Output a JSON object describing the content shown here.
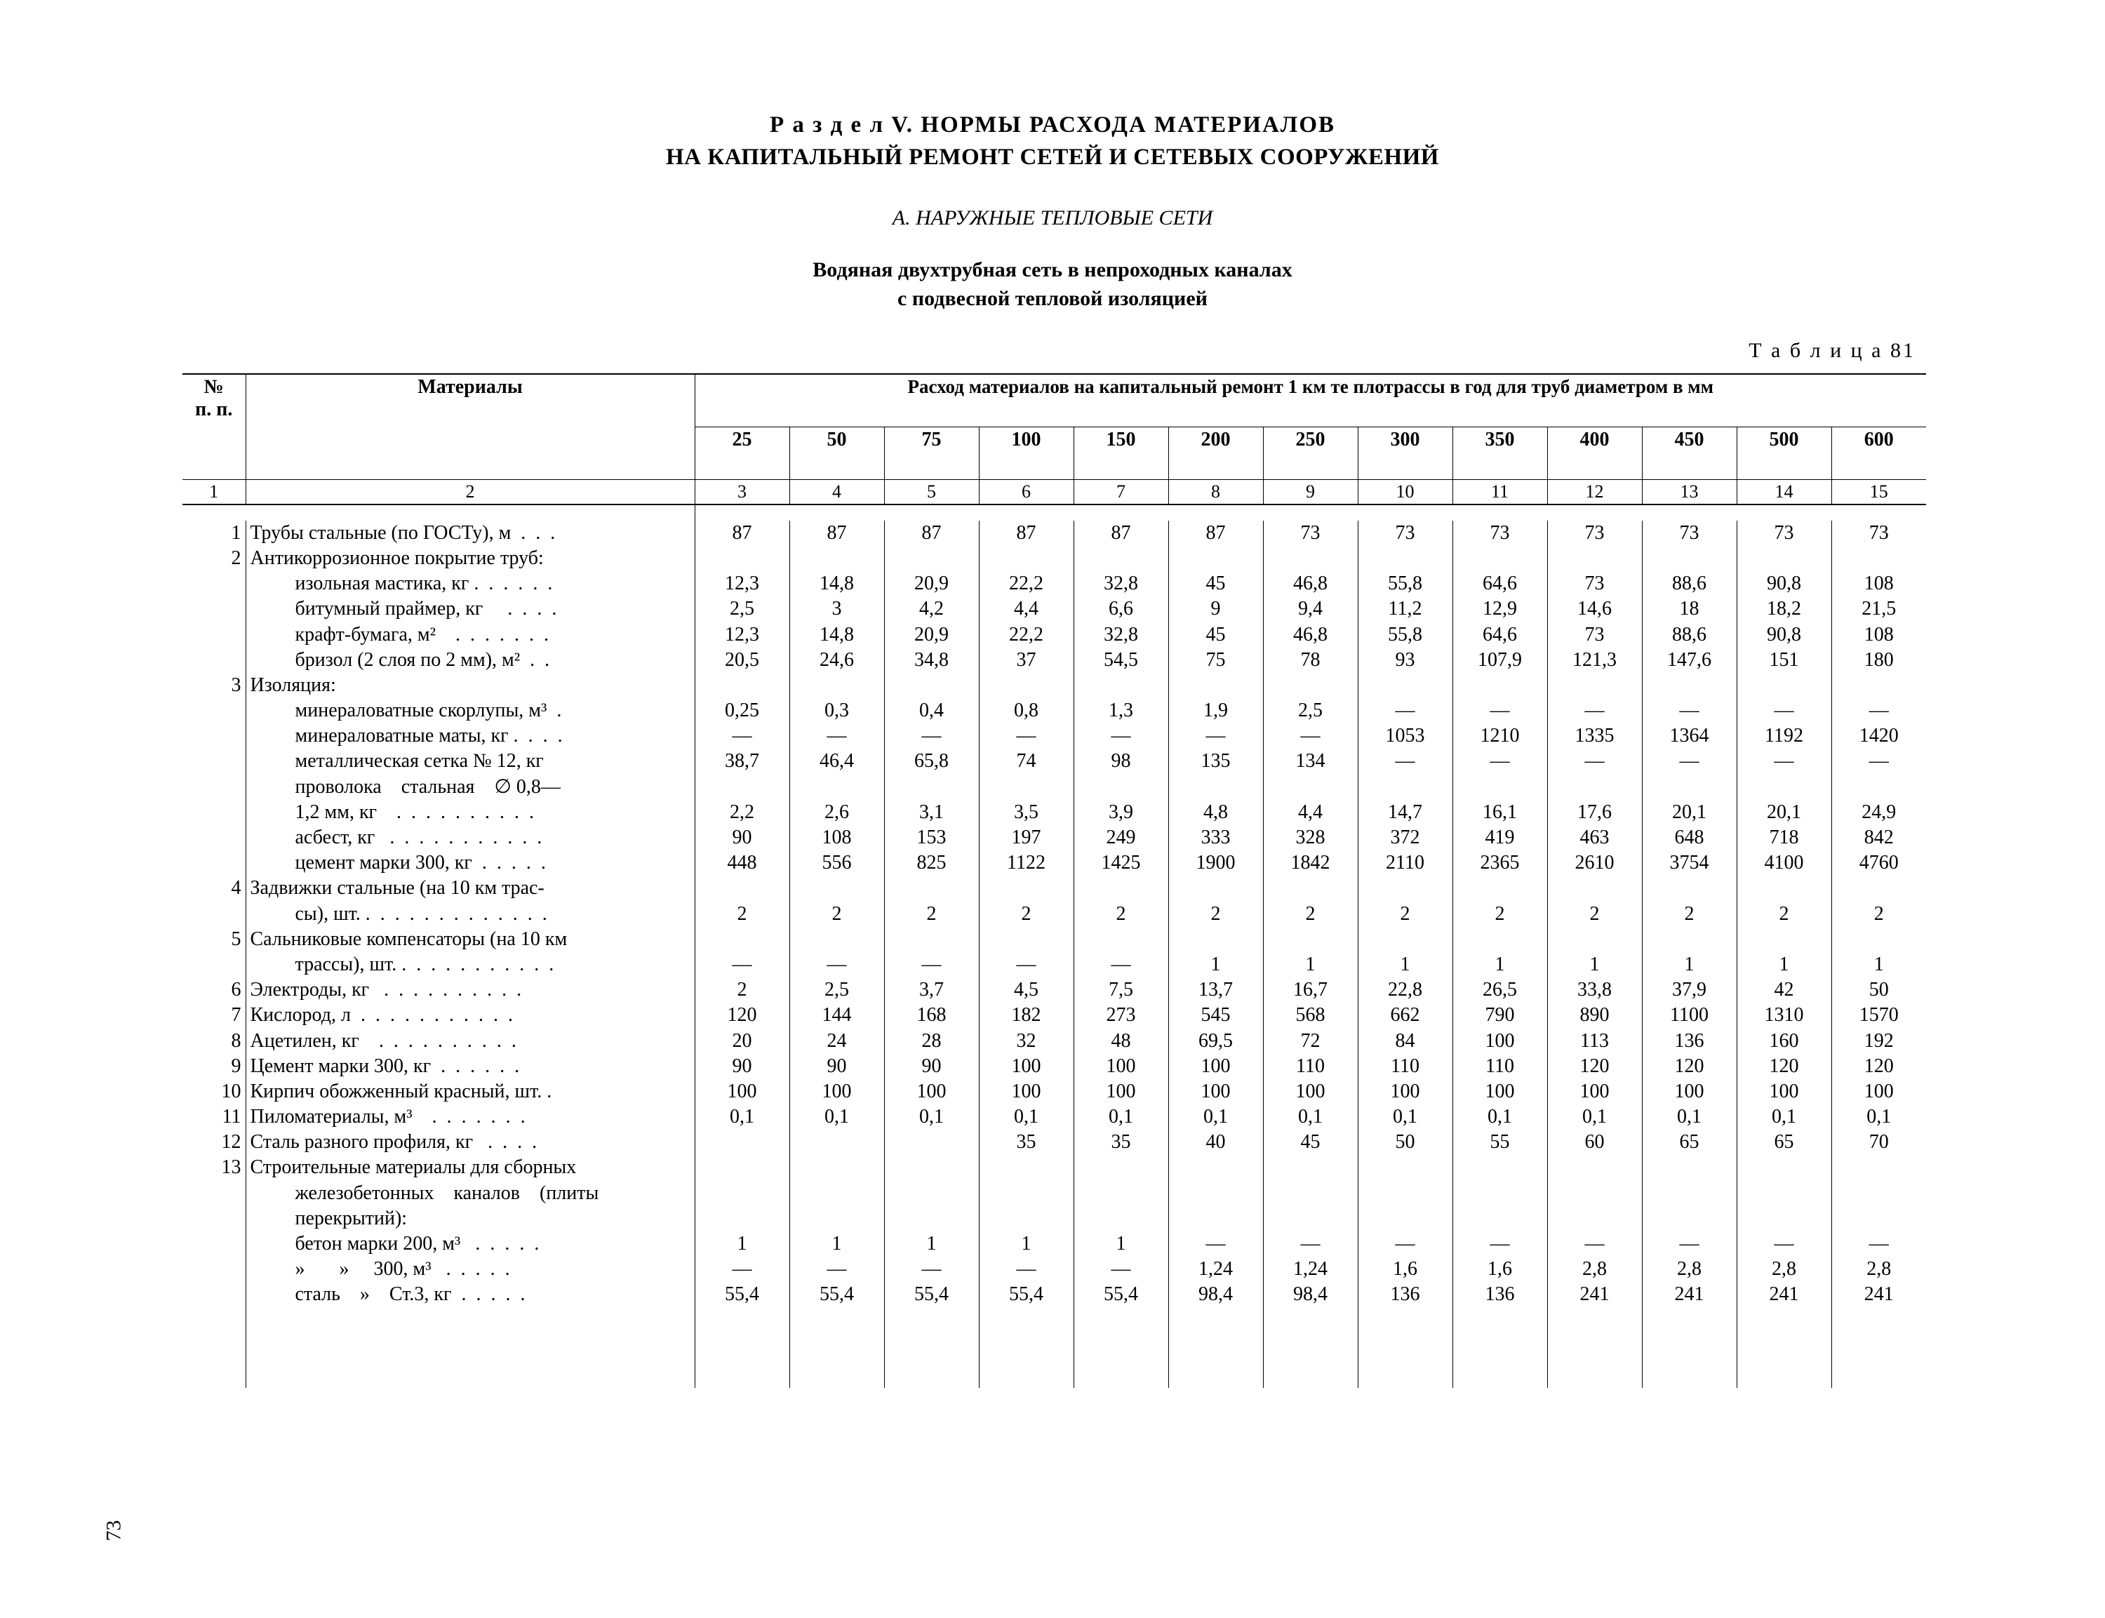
{
  "headings": {
    "section_line1": "Р а з д е л V. НОРМЫ РАСХОДА МАТЕРИАЛОВ",
    "section_line2": "НА КАПИТАЛЬНЫЙ РЕМОНТ СЕТЕЙ И СЕТЕВЫХ СООРУЖЕНИЙ",
    "subsection": "А. НАРУЖНЫЕ ТЕПЛОВЫЕ СЕТИ",
    "table_title_1": "Водяная двухтрубная сеть в непроходных каналах",
    "table_title_2": "с подвесной тепловой изоляцией",
    "table_label": "Т а б л и ц а  81"
  },
  "header": {
    "col_num_1": "№",
    "col_num_2": "п. п.",
    "col_mat": "Материалы",
    "span": "Расход материалов на капитальный ремонт 1 км те плотрассы в год для труб диаметром в мм",
    "diameters": [
      "25",
      "50",
      "75",
      "100",
      "150",
      "200",
      "250",
      "300",
      "350",
      "400",
      "450",
      "500",
      "600"
    ],
    "colnums": [
      "1",
      "2",
      "3",
      "4",
      "5",
      "6",
      "7",
      "8",
      "9",
      "10",
      "11",
      "12",
      "13",
      "14",
      "15"
    ]
  },
  "rows": [
    {
      "n": "1",
      "mat": "Трубы стальные (по ГОСТу), м  .  .  .",
      "v": [
        "87",
        "87",
        "87",
        "87",
        "87",
        "87",
        "73",
        "73",
        "73",
        "73",
        "73",
        "73",
        "73"
      ]
    },
    {
      "n": "2",
      "mat": "Антикоррозионное покрытие труб:",
      "v": [
        "",
        "",
        "",
        "",
        "",
        "",
        "",
        "",
        "",
        "",
        "",
        "",
        ""
      ]
    },
    {
      "n": "",
      "indent": 1,
      "mat": "изольная мастика, кг .  .  .  .  .  .",
      "v": [
        "12,3",
        "14,8",
        "20,9",
        "22,2",
        "32,8",
        "45",
        "46,8",
        "55,8",
        "64,6",
        "73",
        "88,6",
        "90,8",
        "108"
      ]
    },
    {
      "n": "",
      "indent": 1,
      "mat": "битумный праймер, кг     .  .  .  .",
      "v": [
        "2,5",
        "3",
        "4,2",
        "4,4",
        "6,6",
        "9",
        "9,4",
        "11,2",
        "12,9",
        "14,6",
        "18",
        "18,2",
        "21,5"
      ]
    },
    {
      "n": "",
      "indent": 1,
      "mat": "крафт-бумага, м²    .  .  .  .  .  .  .",
      "v": [
        "12,3",
        "14,8",
        "20,9",
        "22,2",
        "32,8",
        "45",
        "46,8",
        "55,8",
        "64,6",
        "73",
        "88,6",
        "90,8",
        "108"
      ]
    },
    {
      "n": "",
      "indent": 1,
      "mat": "бризол (2 слоя по 2 мм), м²  .  .",
      "v": [
        "20,5",
        "24,6",
        "34,8",
        "37",
        "54,5",
        "75",
        "78",
        "93",
        "107,9",
        "121,3",
        "147,6",
        "151",
        "180"
      ]
    },
    {
      "n": "3",
      "mat": "Изоляция:",
      "v": [
        "",
        "",
        "",
        "",
        "",
        "",
        "",
        "",
        "",
        "",
        "",
        "",
        ""
      ]
    },
    {
      "n": "",
      "indent": 1,
      "mat": "минераловатные скорлупы, м³  .",
      "v": [
        "0,25",
        "0,3",
        "0,4",
        "0,8",
        "1,3",
        "1,9",
        "2,5",
        "—",
        "—",
        "—",
        "—",
        "—",
        "—"
      ]
    },
    {
      "n": "",
      "indent": 1,
      "mat": "минераловатные маты, кг .  .  .  .",
      "v": [
        "—",
        "—",
        "—",
        "—",
        "—",
        "—",
        "—",
        "1053",
        "1210",
        "1335",
        "1364",
        "1192",
        "1420"
      ]
    },
    {
      "n": "",
      "indent": 1,
      "mat": "металлическая сетка № 12, кг",
      "v": [
        "38,7",
        "46,4",
        "65,8",
        "74",
        "98",
        "135",
        "134",
        "—",
        "—",
        "—",
        "—",
        "—",
        "—"
      ]
    },
    {
      "n": "",
      "indent": 1,
      "mat": "проволока    стальная    ∅ 0,8—",
      "v": [
        "",
        "",
        "",
        "",
        "",
        "",
        "",
        "",
        "",
        "",
        "",
        "",
        ""
      ]
    },
    {
      "n": "",
      "indent": 1,
      "mat": "1,2 мм, кг    .  .  .  .  .  .  .  .  .  .",
      "v": [
        "2,2",
        "2,6",
        "3,1",
        "3,5",
        "3,9",
        "4,8",
        "4,4",
        "14,7",
        "16,1",
        "17,6",
        "20,1",
        "20,1",
        "24,9"
      ]
    },
    {
      "n": "",
      "indent": 1,
      "mat": "асбест, кг   .  .  .  .  .  .  .  .  .  .  .",
      "v": [
        "90",
        "108",
        "153",
        "197",
        "249",
        "333",
        "328",
        "372",
        "419",
        "463",
        "648",
        "718",
        "842"
      ]
    },
    {
      "n": "",
      "indent": 1,
      "mat": "цемент марки 300, кг  .  .  .  .  .",
      "v": [
        "448",
        "556",
        "825",
        "1122",
        "1425",
        "1900",
        "1842",
        "2110",
        "2365",
        "2610",
        "3754",
        "4100",
        "4760"
      ]
    },
    {
      "n": "4",
      "mat": "Задвижки стальные (на 10 км трас-",
      "v": [
        "",
        "",
        "",
        "",
        "",
        "",
        "",
        "",
        "",
        "",
        "",
        "",
        ""
      ]
    },
    {
      "n": "",
      "indent": 1,
      "mat": "сы), шт. .  .  .  .  .  .  .  .  .  .  .  .  .",
      "v": [
        "2",
        "2",
        "2",
        "2",
        "2",
        "2",
        "2",
        "2",
        "2",
        "2",
        "2",
        "2",
        "2"
      ]
    },
    {
      "n": "5",
      "mat": "Сальниковые компенсаторы (на 10 км",
      "v": [
        "",
        "",
        "",
        "",
        "",
        "",
        "",
        "",
        "",
        "",
        "",
        "",
        ""
      ]
    },
    {
      "n": "",
      "indent": 1,
      "mat": "трассы), шт. .  .  .  .  .  .  .  .  .  .  .",
      "v": [
        "—",
        "—",
        "—",
        "—",
        "—",
        "1",
        "1",
        "1",
        "1",
        "1",
        "1",
        "1",
        "1"
      ]
    },
    {
      "n": "6",
      "mat": "Электроды, кг   .  .  .  .  .  .  .  .  .  .",
      "v": [
        "2",
        "2,5",
        "3,7",
        "4,5",
        "7,5",
        "13,7",
        "16,7",
        "22,8",
        "26,5",
        "33,8",
        "37,9",
        "42",
        "50"
      ]
    },
    {
      "n": "7",
      "mat": "Кислород, л  .  .  .  .  .  .  .  .  .  .  .",
      "v": [
        "120",
        "144",
        "168",
        "182",
        "273",
        "545",
        "568",
        "662",
        "790",
        "890",
        "1100",
        "1310",
        "1570"
      ]
    },
    {
      "n": "8",
      "mat": "Ацетилен, кг    .  .  .  .  .  .  .  .  .  .",
      "v": [
        "20",
        "24",
        "28",
        "32",
        "48",
        "69,5",
        "72",
        "84",
        "100",
        "113",
        "136",
        "160",
        "192"
      ]
    },
    {
      "n": "9",
      "mat": "Цемент марки 300, кг  .  .  .  .  .  .",
      "v": [
        "90",
        "90",
        "90",
        "100",
        "100",
        "100",
        "110",
        "110",
        "110",
        "120",
        "120",
        "120",
        "120"
      ]
    },
    {
      "n": "10",
      "mat": "Кирпич обожженный красный, шт. .",
      "v": [
        "100",
        "100",
        "100",
        "100",
        "100",
        "100",
        "100",
        "100",
        "100",
        "100",
        "100",
        "100",
        "100"
      ]
    },
    {
      "n": "11",
      "mat": "Пиломатериалы, м³    .  .  .  .  .  .  .",
      "v": [
        "0,1",
        "0,1",
        "0,1",
        "0,1",
        "0,1",
        "0,1",
        "0,1",
        "0,1",
        "0,1",
        "0,1",
        "0,1",
        "0,1",
        "0,1"
      ]
    },
    {
      "n": "12",
      "mat": "Сталь разного профиля, кг   .  .  .  .",
      "v": [
        "",
        "",
        "",
        "35",
        "35",
        "40",
        "45",
        "50",
        "55",
        "60",
        "65",
        "65",
        "70"
      ]
    },
    {
      "n": "13",
      "mat": "Строительные материалы для сборных",
      "v": [
        "",
        "",
        "",
        "",
        "",
        "",
        "",
        "",
        "",
        "",
        "",
        "",
        ""
      ]
    },
    {
      "n": "",
      "indent": 1,
      "mat": "железобетонных    каналов    (плиты",
      "v": [
        "",
        "",
        "",
        "",
        "",
        "",
        "",
        "",
        "",
        "",
        "",
        "",
        ""
      ]
    },
    {
      "n": "",
      "indent": 1,
      "mat": "перекрытий):",
      "v": [
        "",
        "",
        "",
        "",
        "",
        "",
        "",
        "",
        "",
        "",
        "",
        "",
        ""
      ]
    },
    {
      "n": "",
      "indent": 2,
      "mat": "бетон марки 200, м³   .  .  .  .  .",
      "v": [
        "1",
        "1",
        "1",
        "1",
        "1",
        "—",
        "—",
        "—",
        "—",
        "—",
        "—",
        "—",
        "—"
      ]
    },
    {
      "n": "",
      "indent": 2,
      "mat": "»       »     300, м³   .  .  .  .  .",
      "v": [
        "—",
        "—",
        "—",
        "—",
        "—",
        "1,24",
        "1,24",
        "1,6",
        "1,6",
        "2,8",
        "2,8",
        "2,8",
        "2,8"
      ]
    },
    {
      "n": "",
      "indent": 2,
      "mat": "сталь    »    Ст.3, кг  .  .  .  .  .",
      "v": [
        "55,4",
        "55,4",
        "55,4",
        "55,4",
        "55,4",
        "98,4",
        "98,4",
        "136",
        "136",
        "241",
        "241",
        "241",
        "241"
      ]
    }
  ],
  "page_number": "73"
}
